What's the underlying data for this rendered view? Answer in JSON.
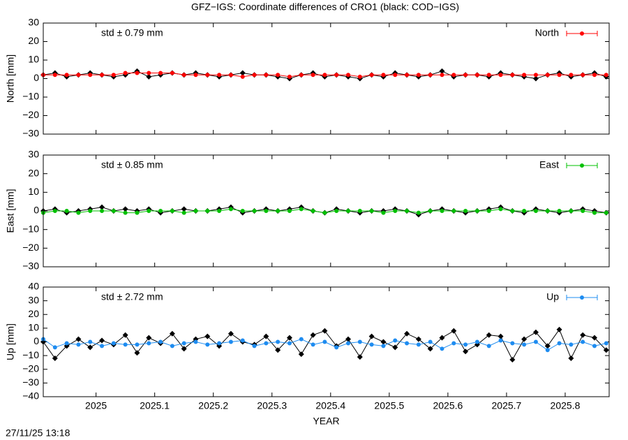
{
  "title": "GFZ−IGS: Coordinate differences of CRO1 (black: COD−IGS)",
  "timestamp": "27/11/25 13:18",
  "chart_data": [
    {
      "type": "line",
      "y_label": "North [mm]",
      "annotation": "std ± 0.79 mm",
      "annotation_color": "#ff0000",
      "legend": "top-right",
      "xlim": [
        2024.91,
        2025.875
      ],
      "xticks": [
        2025,
        2025.1,
        2025.2,
        2025.3,
        2025.4,
        2025.5,
        2025.6,
        2025.7,
        2025.8
      ],
      "ylim": [
        -30,
        30
      ],
      "yticks": [
        {
          "value": -30,
          "label": "−30"
        },
        {
          "value": -20,
          "label": "−20"
        },
        {
          "value": -10,
          "label": "−10"
        },
        0,
        10,
        20,
        30
      ],
      "x": [
        2024.91,
        2024.93,
        2024.95,
        2024.97,
        2024.99,
        2025.01,
        2025.03,
        2025.05,
        2025.07,
        2025.09,
        2025.11,
        2025.13,
        2025.15,
        2025.17,
        2025.19,
        2025.21,
        2025.23,
        2025.25,
        2025.27,
        2025.29,
        2025.31,
        2025.33,
        2025.35,
        2025.37,
        2025.39,
        2025.41,
        2025.43,
        2025.45,
        2025.47,
        2025.49,
        2025.51,
        2025.53,
        2025.55,
        2025.57,
        2025.59,
        2025.61,
        2025.63,
        2025.65,
        2025.67,
        2025.69,
        2025.71,
        2025.73,
        2025.75,
        2025.77,
        2025.79,
        2025.81,
        2025.83,
        2025.85,
        2025.87
      ],
      "series": [
        {
          "color": "#000000",
          "values": [
            2,
            3,
            1,
            2,
            3,
            2,
            1,
            2,
            4,
            1,
            2,
            3,
            2,
            3,
            2,
            1,
            2,
            3,
            2,
            2,
            1,
            0,
            2,
            3,
            1,
            2,
            1,
            0,
            2,
            1,
            3,
            2,
            1,
            2,
            4,
            1,
            2,
            2,
            1,
            3,
            2,
            1,
            0,
            2,
            3,
            1,
            2,
            3,
            1
          ]
        },
        {
          "name": "North",
          "color": "#ff0000",
          "values": [
            2,
            2,
            2,
            2,
            2,
            2,
            2,
            3,
            3,
            3,
            3,
            3,
            2,
            2,
            2,
            2,
            2,
            1,
            2,
            2,
            2,
            1,
            2,
            2,
            2,
            2,
            2,
            1,
            2,
            2,
            2,
            2,
            2,
            2,
            2,
            2,
            2,
            2,
            2,
            2,
            2,
            2,
            2,
            2,
            2,
            2,
            2,
            2,
            2
          ]
        }
      ]
    },
    {
      "type": "line",
      "y_label": "East [mm]",
      "annotation": "std ± 0.85 mm",
      "annotation_color": "#00c000",
      "legend": "top-right",
      "xlim": [
        2024.91,
        2025.875
      ],
      "xticks": [
        2025,
        2025.1,
        2025.2,
        2025.3,
        2025.4,
        2025.5,
        2025.6,
        2025.7,
        2025.8
      ],
      "ylim": [
        -30,
        30
      ],
      "yticks": [
        {
          "value": -30,
          "label": "−30"
        },
        {
          "value": -20,
          "label": "−20"
        },
        {
          "value": -10,
          "label": "−10"
        },
        0,
        10,
        20,
        30
      ],
      "x": [
        2024.91,
        2024.93,
        2024.95,
        2024.97,
        2024.99,
        2025.01,
        2025.03,
        2025.05,
        2025.07,
        2025.09,
        2025.11,
        2025.13,
        2025.15,
        2025.17,
        2025.19,
        2025.21,
        2025.23,
        2025.25,
        2025.27,
        2025.29,
        2025.31,
        2025.33,
        2025.35,
        2025.37,
        2025.39,
        2025.41,
        2025.43,
        2025.45,
        2025.47,
        2025.49,
        2025.51,
        2025.53,
        2025.55,
        2025.57,
        2025.59,
        2025.61,
        2025.63,
        2025.65,
        2025.67,
        2025.69,
        2025.71,
        2025.73,
        2025.75,
        2025.77,
        2025.79,
        2025.81,
        2025.83,
        2025.85,
        2025.87
      ],
      "series": [
        {
          "color": "#000000",
          "values": [
            0,
            1,
            -1,
            0,
            1,
            2,
            0,
            1,
            0,
            1,
            -1,
            0,
            1,
            0,
            0,
            1,
            2,
            -1,
            0,
            1,
            0,
            1,
            2,
            0,
            -1,
            1,
            0,
            -1,
            0,
            0,
            1,
            0,
            -2,
            0,
            1,
            0,
            -1,
            0,
            1,
            2,
            0,
            -1,
            1,
            0,
            -1,
            0,
            1,
            0,
            -1
          ]
        },
        {
          "name": "East",
          "color": "#00c000",
          "values": [
            -1,
            0,
            0,
            -1,
            0,
            0,
            0,
            -1,
            -1,
            0,
            0,
            0,
            -1,
            0,
            0,
            0,
            1,
            0,
            0,
            0,
            0,
            0,
            1,
            0,
            -1,
            0,
            0,
            0,
            0,
            -1,
            0,
            0,
            -1,
            0,
            0,
            0,
            0,
            0,
            0,
            1,
            0,
            0,
            0,
            0,
            0,
            0,
            0,
            -1,
            -1
          ]
        }
      ]
    },
    {
      "type": "line",
      "y_label": "Up [mm]",
      "x_label": "YEAR",
      "annotation": "std ± 2.72 mm",
      "annotation_color": "#1e8cf0",
      "legend": "top-right",
      "xlim": [
        2024.91,
        2025.875
      ],
      "xticks": [
        2025,
        2025.1,
        2025.2,
        2025.3,
        2025.4,
        2025.5,
        2025.6,
        2025.7,
        2025.8
      ],
      "ylim": [
        -40,
        40
      ],
      "yticks": [
        {
          "value": -40,
          "label": "−40"
        },
        {
          "value": -30,
          "label": "−30"
        },
        {
          "value": -20,
          "label": "−20"
        },
        {
          "value": -10,
          "label": "−10"
        },
        0,
        10,
        20,
        30,
        40
      ],
      "x": [
        2024.91,
        2024.93,
        2024.95,
        2024.97,
        2024.99,
        2025.01,
        2025.03,
        2025.05,
        2025.07,
        2025.09,
        2025.11,
        2025.13,
        2025.15,
        2025.17,
        2025.19,
        2025.21,
        2025.23,
        2025.25,
        2025.27,
        2025.29,
        2025.31,
        2025.33,
        2025.35,
        2025.37,
        2025.39,
        2025.41,
        2025.43,
        2025.45,
        2025.47,
        2025.49,
        2025.51,
        2025.53,
        2025.55,
        2025.57,
        2025.59,
        2025.61,
        2025.63,
        2025.65,
        2025.67,
        2025.69,
        2025.71,
        2025.73,
        2025.75,
        2025.77,
        2025.79,
        2025.81,
        2025.83,
        2025.85,
        2025.87
      ],
      "series": [
        {
          "color": "#000000",
          "values": [
            0,
            -12,
            -3,
            2,
            -4,
            1,
            -2,
            5,
            -8,
            3,
            -1,
            6,
            -5,
            2,
            4,
            -3,
            6,
            0,
            -2,
            4,
            -6,
            3,
            -9,
            5,
            8,
            -3,
            2,
            -11,
            4,
            0,
            -4,
            6,
            2,
            -5,
            3,
            8,
            -7,
            -2,
            5,
            4,
            -13,
            2,
            7,
            -3,
            9,
            -12,
            5,
            3,
            -6
          ]
        },
        {
          "name": "Up",
          "color": "#1e8cf0",
          "values": [
            2,
            -4,
            -1,
            -2,
            0,
            -3,
            -1,
            -2,
            -2,
            -1,
            0,
            -3,
            -1,
            0,
            -2,
            -1,
            0,
            1,
            -3,
            -1,
            0,
            -1,
            2,
            -2,
            0,
            -4,
            -1,
            0,
            -2,
            -3,
            1,
            -1,
            -2,
            0,
            -5,
            -1,
            -2,
            0,
            -3,
            1,
            -1,
            -2,
            0,
            -6,
            -1,
            -2,
            0,
            -3,
            -1
          ]
        }
      ]
    }
  ]
}
